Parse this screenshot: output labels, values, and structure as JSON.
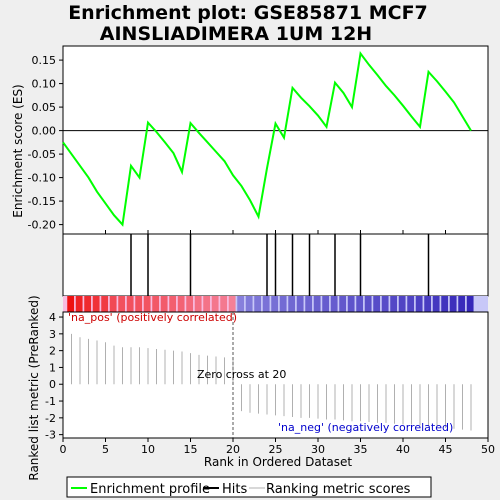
{
  "title_line1": "Enrichment plot: GSE85871 MCF7",
  "title_line2": "AINSLIADIMERA 1UM 12H",
  "chart_data": {
    "type": "line",
    "es_panel": {
      "ylabel": "Enrichment score (ES)",
      "ylim": [
        -0.22,
        0.18
      ],
      "yticks": [
        -0.2,
        -0.15,
        -0.1,
        -0.05,
        0.0,
        0.05,
        0.1,
        0.15
      ],
      "ytick_labels": [
        "-0.20",
        "-0.15",
        "-0.10",
        "-0.05",
        "0.00",
        "0.05",
        "0.10",
        "0.15"
      ],
      "series": [
        {
          "x": [
            0,
            1,
            2,
            3,
            4,
            5,
            6,
            7,
            8,
            9,
            10,
            11,
            12,
            13,
            14,
            15,
            16,
            17,
            18,
            19,
            20,
            21,
            22,
            23,
            24,
            25,
            26,
            27,
            28,
            29,
            30,
            31,
            32,
            33,
            34,
            35,
            36,
            37,
            38,
            39,
            40,
            41,
            42,
            43,
            44,
            45,
            46,
            47,
            48
          ],
          "y": [
            -0.025,
            -0.05,
            -0.075,
            -0.1,
            -0.13,
            -0.155,
            -0.18,
            -0.2,
            -0.075,
            -0.1,
            0.017,
            -0.003,
            -0.025,
            -0.048,
            -0.088,
            0.016,
            -0.005,
            -0.025,
            -0.045,
            -0.065,
            -0.095,
            -0.118,
            -0.148,
            -0.183,
            -0.08,
            0.015,
            -0.015,
            0.091,
            0.07,
            0.052,
            0.032,
            0.008,
            0.102,
            0.08,
            0.05,
            0.164,
            0.14,
            0.118,
            0.095,
            0.075,
            0.053,
            0.03,
            0.008,
            0.125,
            0.105,
            0.083,
            0.06,
            0.03,
            0.0
          ]
        }
      ]
    },
    "hits": [
      8,
      10,
      15,
      24,
      25,
      27,
      29,
      32,
      35,
      43
    ],
    "rank_panel": {
      "ylabel": "Ranked list metric (PreRanked)",
      "xlabel": "Rank in Ordered Dataset",
      "ylim": [
        -3.2,
        4.3
      ],
      "yticks": [
        -3,
        -2,
        -1,
        0,
        1,
        2,
        3,
        4
      ],
      "ytick_labels": [
        "-3",
        "-2",
        "-1",
        "0",
        "1",
        "2",
        "3",
        "4"
      ],
      "x": [
        1,
        2,
        3,
        4,
        5,
        6,
        7,
        8,
        9,
        10,
        11,
        12,
        13,
        14,
        15,
        16,
        17,
        18,
        19,
        20,
        21,
        22,
        23,
        24,
        25,
        26,
        27,
        28,
        29,
        30,
        31,
        32,
        33,
        34,
        35,
        36,
        37,
        38,
        39,
        40,
        41,
        42,
        43,
        44,
        45,
        46,
        47,
        48
      ],
      "values": [
        3.0,
        2.8,
        2.7,
        2.6,
        2.5,
        2.3,
        2.2,
        2.2,
        2.2,
        2.15,
        2.1,
        2.05,
        2.0,
        1.95,
        1.85,
        1.75,
        1.7,
        1.65,
        1.6,
        1.5,
        -1.6,
        -1.7,
        -1.75,
        -1.8,
        -1.85,
        -1.9,
        -1.95,
        -2.0,
        -2.0,
        -2.05,
        -2.1,
        -2.1,
        -2.15,
        -2.2,
        -2.2,
        -2.25,
        -2.3,
        -2.3,
        -2.35,
        -2.4,
        -2.4,
        -2.45,
        -2.5,
        -2.55,
        -2.6,
        -2.65,
        -2.7,
        -2.75
      ]
    },
    "xlim": [
      0,
      50
    ],
    "xticks": [
      0,
      5,
      10,
      15,
      20,
      25,
      30,
      35,
      40,
      45,
      50
    ],
    "xtick_labels": [
      "0",
      "5",
      "10",
      "15",
      "20",
      "25",
      "30",
      "35",
      "40",
      "45",
      "50"
    ],
    "zero_cross": 20,
    "annotations": {
      "pos": "'na_pos' (positively correlated)",
      "neg": "'na_neg' (negatively correlated)",
      "zero": "Zero cross at 20"
    },
    "legend": {
      "placement": "bottom",
      "entries": [
        "Enrichment profile",
        "Hits",
        "Ranking metric scores"
      ]
    },
    "colors": {
      "profile": "#00ff00",
      "hits": "#000000",
      "metric": "#b0b0b0",
      "pos_text": "#cc0000",
      "neg_text": "#0000cc",
      "bar_pos_dark": "#ee1111",
      "bar_pos_light": "#f8bce0",
      "bar_neg_light": "#c8c8f8",
      "bar_neg_dark": "#2010b0"
    }
  }
}
